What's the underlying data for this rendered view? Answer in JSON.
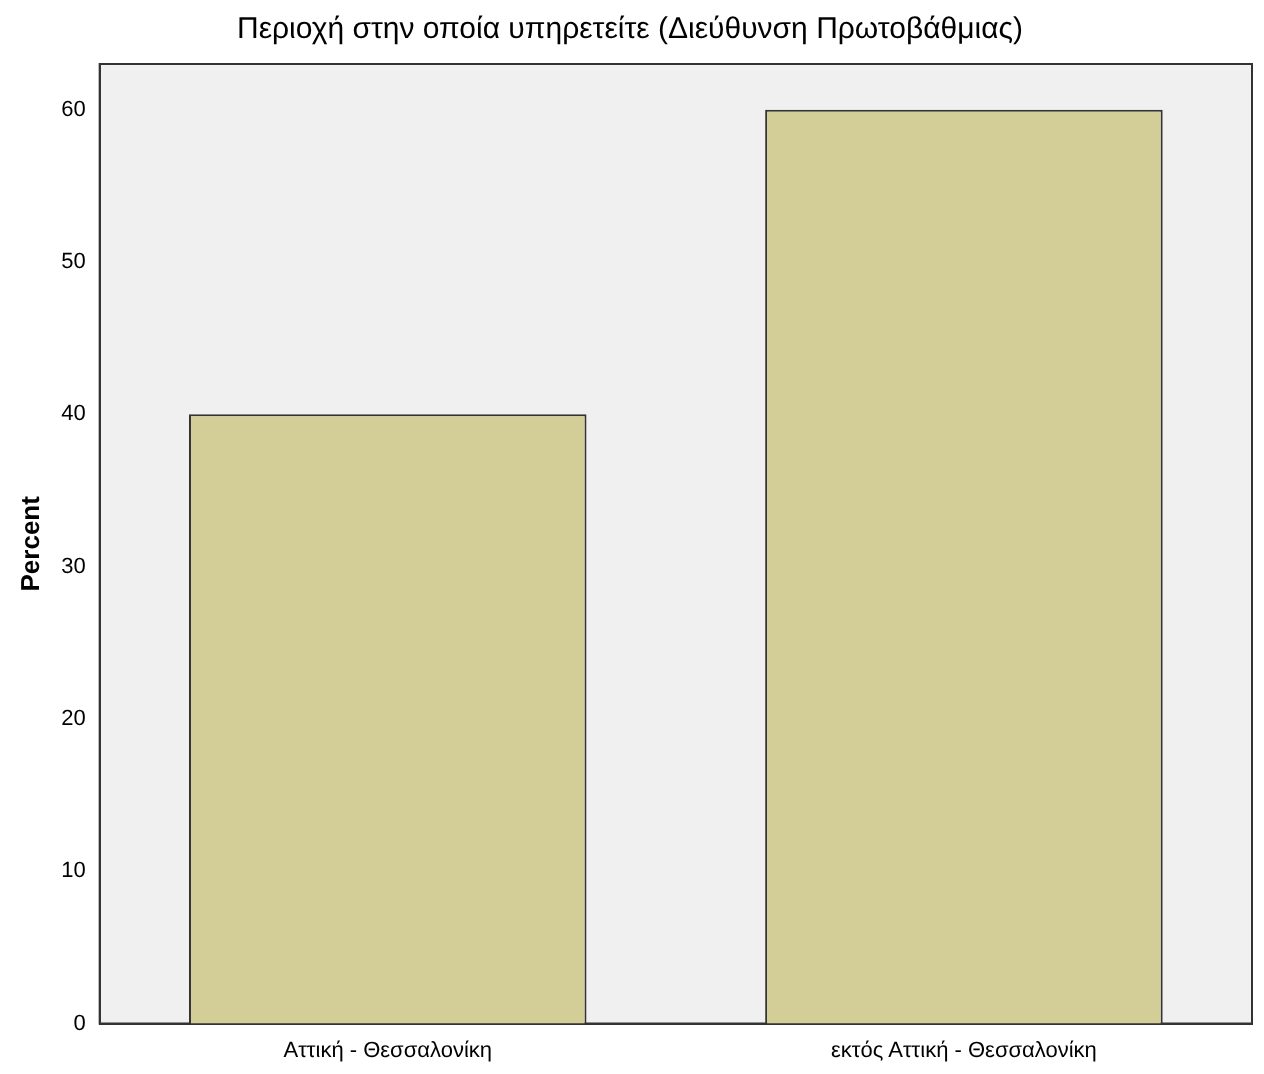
{
  "chart_data": {
    "type": "bar",
    "title": "Περιοχή στην οποία υπηρετείτε (Διεύθυνση Πρωτοβάθμιας)",
    "ylabel": "Percent",
    "categories": [
      "Αττική - Θεσσαλονίκη",
      "εκτός Αττική - Θεσσαλονίκη"
    ],
    "values": [
      40,
      60
    ],
    "color": "#d3ce97",
    "ylim": [
      0,
      63
    ],
    "yticks": [
      0,
      10,
      20,
      30,
      40,
      50,
      60
    ],
    "grid": false,
    "legend": false
  }
}
